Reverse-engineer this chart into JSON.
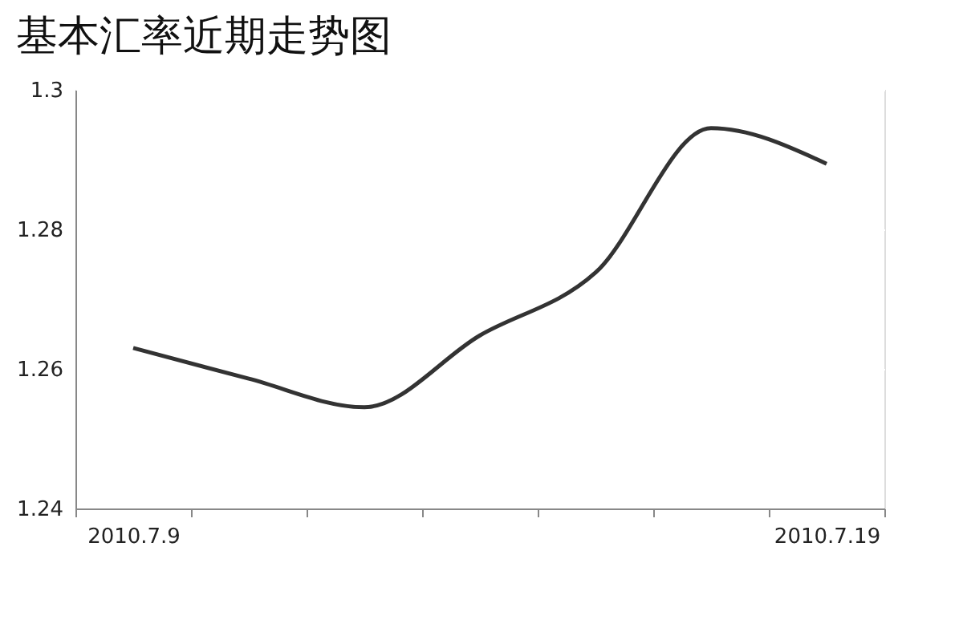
{
  "chart_data": {
    "type": "line",
    "title": "基本汇率近期走势图",
    "categories": [
      "2010.7.9",
      null,
      null,
      null,
      null,
      null,
      "2010.7.19"
    ],
    "series": [
      {
        "color": "#333333",
        "values": [
          1.263,
          1.2586,
          1.2545,
          1.2648,
          1.2738,
          1.2945,
          1.2894
        ]
      }
    ],
    "ylim": [
      1.24,
      1.3
    ],
    "yticks": [
      1.24,
      1.26,
      1.28,
      1.3
    ],
    "grid": "y",
    "marker": "none",
    "line_style": "solid",
    "legend": false
  }
}
